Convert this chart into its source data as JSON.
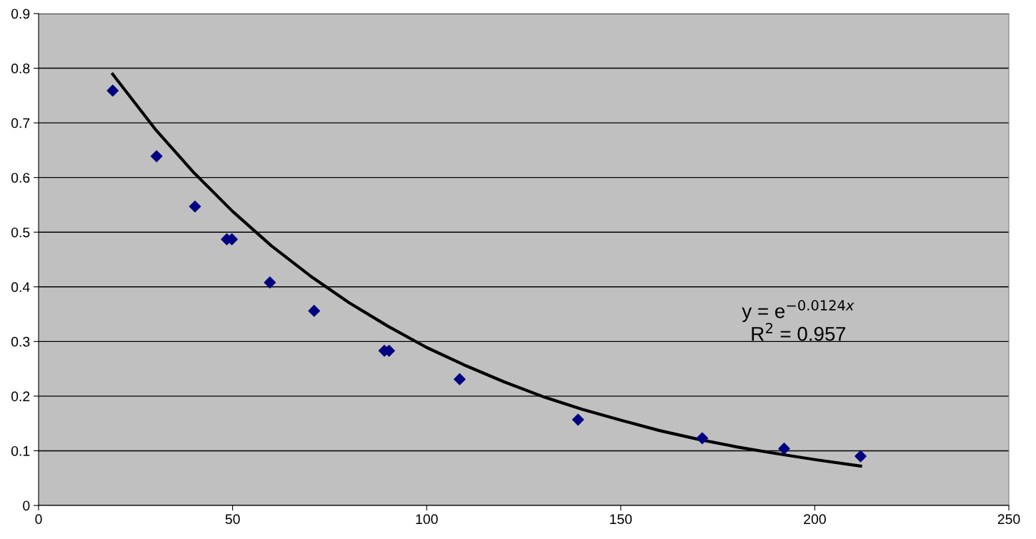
{
  "chart_data": {
    "type": "scatter",
    "xlim": [
      0,
      250
    ],
    "xticks": [
      0,
      50,
      100,
      150,
      200,
      250
    ],
    "ylim": [
      0,
      0.9
    ],
    "yticks": [
      0,
      0.1,
      0.2,
      0.3,
      0.4,
      0.5,
      0.6,
      0.7,
      0.8,
      0.9
    ],
    "grid": "y",
    "legend": false,
    "annotations": [
      "y = e$^{−0.0124x}$",
      "R$^{2}$ = 0.957"
    ],
    "series": [
      {
        "marker": "diamond",
        "color": "#000080",
        "x": [
          19.1,
          30.4,
          40.3,
          48.5,
          49.8,
          59.6,
          71.0,
          89.1,
          90.3,
          108.5,
          139.0,
          171.0,
          192.1,
          211.8
        ],
        "values": [
          0.759,
          0.639,
          0.547,
          0.487,
          0.487,
          0.408,
          0.356,
          0.283,
          0.283,
          0.231,
          0.157,
          0.123,
          0.104,
          0.09
        ]
      },
      {
        "type": "line",
        "marker": "none",
        "line_style": "solid",
        "color": "#000000",
        "x": [
          19.1,
          30,
          40,
          50,
          60,
          70,
          80,
          90,
          100,
          110,
          120,
          130,
          140,
          150,
          160,
          170,
          180,
          190,
          200,
          211.8
        ],
        "values": [
          0.789,
          0.689,
          0.609,
          0.538,
          0.475,
          0.42,
          0.371,
          0.328,
          0.289,
          0.256,
          0.226,
          0.199,
          0.176,
          0.156,
          0.137,
          0.121,
          0.107,
          0.095,
          0.084,
          0.072
        ]
      }
    ]
  }
}
